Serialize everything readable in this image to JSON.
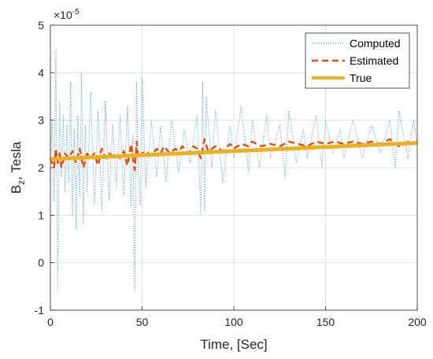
{
  "chart_data": {
    "type": "line",
    "title": "",
    "xlabel": "Time, [Sec]",
    "ylabel": {
      "base": "B",
      "sub": "z",
      "rest": ", Tesla"
    },
    "xlim": [
      0,
      200
    ],
    "ylim": [
      -1,
      5
    ],
    "y_exponent": {
      "prefix": "×10",
      "power": "-5"
    },
    "x_ticks": [
      "0",
      "50",
      "100",
      "150",
      "200"
    ],
    "y_ticks": [
      "-1",
      "0",
      "1",
      "2",
      "3",
      "4",
      "5"
    ],
    "grid": true,
    "legend_position": "top-right",
    "colors": {
      "computed": "#0072BD",
      "estimated": "#D95319",
      "true": "#EDB120",
      "grid": "#dcdcdc",
      "axis": "#262626"
    },
    "series": [
      {
        "name": "Computed",
        "style": "dotted",
        "x": [
          0,
          1,
          2,
          3,
          4,
          5,
          6,
          7,
          8,
          9,
          10,
          11,
          12,
          13,
          14,
          15,
          16,
          17,
          18,
          19,
          20,
          22,
          24,
          26,
          28,
          30,
          32,
          34,
          36,
          38,
          40,
          42,
          44,
          45,
          46,
          47,
          48,
          49,
          50,
          52,
          55,
          58,
          60,
          63,
          66,
          70,
          73,
          76,
          80,
          82,
          83,
          84,
          85,
          88,
          90,
          94,
          98,
          100,
          104,
          108,
          110,
          114,
          118,
          120,
          125,
          128,
          130,
          134,
          138,
          140,
          145,
          148,
          150,
          154,
          158,
          160,
          165,
          170,
          175,
          180,
          185,
          188,
          190,
          195,
          198,
          200
        ],
        "values": [
          2.2,
          3.0,
          1.3,
          4.5,
          -0.6,
          3.4,
          1.8,
          3.1,
          1.5,
          2.9,
          1.7,
          3.8,
          1.0,
          2.8,
          0.7,
          3.1,
          1.4,
          4.0,
          0.8,
          2.9,
          1.5,
          3.6,
          1.2,
          3.2,
          1.1,
          3.4,
          1.3,
          2.9,
          1.6,
          3.1,
          1.4,
          3.3,
          1.2,
          2.7,
          -0.6,
          3.8,
          1.9,
          1.2,
          3.9,
          1.6,
          3.0,
          1.8,
          2.9,
          1.7,
          3.0,
          1.9,
          2.8,
          2.1,
          3.1,
          1.0,
          3.8,
          1.1,
          3.5,
          2.0,
          3.2,
          1.7,
          2.9,
          2.2,
          3.3,
          1.9,
          3.0,
          2.0,
          3.1,
          2.2,
          2.9,
          1.8,
          3.2,
          2.1,
          2.8,
          2.2,
          3.1,
          2.0,
          3.0,
          2.3,
          2.8,
          2.2,
          3.0,
          2.2,
          2.9,
          2.3,
          3.0,
          2.0,
          3.2,
          2.2,
          3.0,
          2.5
        ]
      },
      {
        "name": "Estimated",
        "style": "dashed",
        "x": [
          0,
          2,
          3,
          4,
          5,
          6,
          8,
          10,
          12,
          14,
          16,
          18,
          20,
          22,
          24,
          26,
          28,
          30,
          32,
          34,
          36,
          38,
          40,
          42,
          44,
          46,
          47,
          48,
          50,
          52,
          55,
          58,
          60,
          62,
          65,
          68,
          70,
          72,
          75,
          78,
          80,
          82,
          84,
          86,
          88,
          90,
          94,
          98,
          100,
          104,
          108,
          110,
          115,
          120,
          125,
          130,
          135,
          140,
          145,
          150,
          155,
          160,
          165,
          170,
          175,
          180,
          185,
          190,
          195,
          200
        ],
        "values": [
          2.2,
          2.0,
          2.4,
          2.1,
          2.3,
          2.0,
          2.3,
          2.2,
          2.35,
          2.1,
          2.4,
          2.0,
          2.3,
          2.2,
          2.3,
          2.05,
          2.4,
          2.2,
          2.3,
          2.25,
          2.3,
          2.2,
          2.35,
          2.05,
          2.5,
          1.95,
          2.55,
          2.2,
          2.3,
          2.35,
          2.25,
          2.4,
          2.3,
          2.45,
          2.3,
          2.4,
          2.35,
          2.45,
          2.3,
          2.45,
          2.4,
          2.2,
          2.6,
          2.35,
          2.4,
          2.45,
          2.35,
          2.5,
          2.4,
          2.5,
          2.45,
          2.55,
          2.45,
          2.5,
          2.45,
          2.55,
          2.5,
          2.45,
          2.55,
          2.5,
          2.55,
          2.5,
          2.55,
          2.5,
          2.55,
          2.5,
          2.6,
          2.45,
          2.55,
          2.5
        ]
      },
      {
        "name": "True",
        "style": "solid",
        "x": [
          0,
          200
        ],
        "values": [
          2.18,
          2.52
        ]
      }
    ]
  }
}
